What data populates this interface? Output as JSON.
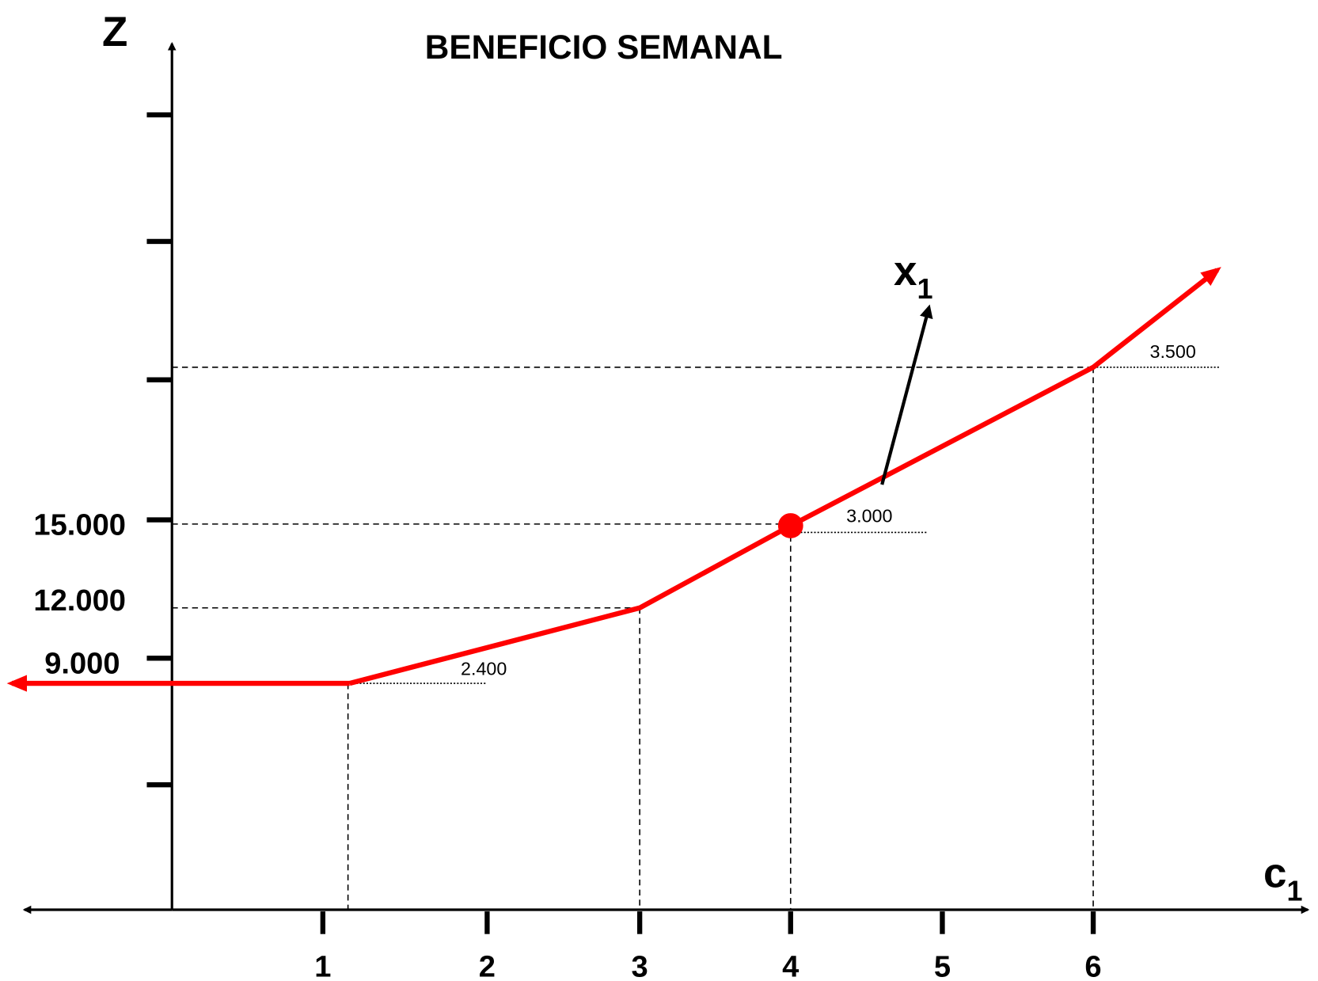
{
  "title": "BENEFICIO SEMANAL",
  "y_axis": {
    "label": "Z",
    "labels": [
      "15.000",
      "12.000",
      "9.000"
    ]
  },
  "x_axis": {
    "label": "c",
    "label_sub": "1",
    "labels": [
      "1",
      "2",
      "3",
      "4",
      "5",
      "6"
    ]
  },
  "slope_labels": [
    "2.400",
    "3.000",
    "3.500"
  ],
  "variable": {
    "label": "x",
    "label_sub": "1"
  }
}
